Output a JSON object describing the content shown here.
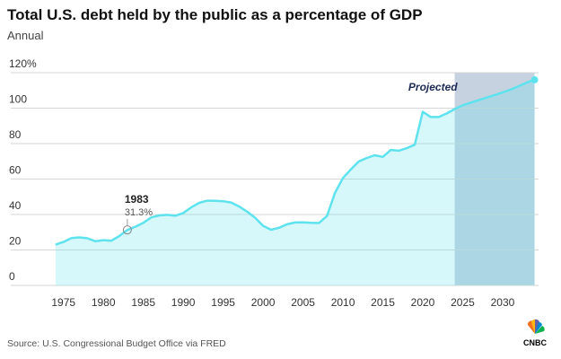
{
  "chart_data": {
    "type": "area",
    "title": "Total U.S. debt held by the public as a percentage of GDP",
    "subtitle": "Annual",
    "source": "Source: U.S. Congressional Budget Office via FRED",
    "logo": "CNBC",
    "x": [
      1974,
      1975,
      1976,
      1977,
      1978,
      1979,
      1980,
      1981,
      1982,
      1983,
      1984,
      1985,
      1986,
      1987,
      1988,
      1989,
      1990,
      1991,
      1992,
      1993,
      1994,
      1995,
      1996,
      1997,
      1998,
      1999,
      2000,
      2001,
      2002,
      2003,
      2004,
      2005,
      2006,
      2007,
      2008,
      2009,
      2010,
      2011,
      2012,
      2013,
      2014,
      2015,
      2016,
      2017,
      2018,
      2019,
      2020,
      2021,
      2022,
      2023,
      2024,
      2025,
      2026,
      2027,
      2028,
      2029,
      2030,
      2031,
      2032,
      2033,
      2034
    ],
    "values": [
      23,
      24.5,
      26.7,
      27.1,
      26.6,
      24.9,
      25.5,
      25.2,
      27.9,
      31.3,
      33.1,
      35.3,
      38.4,
      39.5,
      39.8,
      39.3,
      40.8,
      44.0,
      46.6,
      47.8,
      47.7,
      47.5,
      46.8,
      44.5,
      41.6,
      38.2,
      33.6,
      31.4,
      32.5,
      34.5,
      35.5,
      35.6,
      35.3,
      35.2,
      39.2,
      52.2,
      60.6,
      65.5,
      70.0,
      71.9,
      73.4,
      72.5,
      76.4,
      76.0,
      77.4,
      79.4,
      98,
      95,
      95,
      97,
      99.5,
      101.6,
      103.1,
      104.5,
      106.0,
      107.4,
      108.9,
      110.5,
      112.4,
      114.4,
      116.0
    ],
    "color": "#5ee3ee",
    "xlim": [
      1968.4,
      2034.5
    ],
    "xticks": [
      1975,
      1980,
      1985,
      1990,
      1995,
      2000,
      2005,
      2010,
      2015,
      2020,
      2025,
      2030
    ],
    "ylim": [
      0,
      120
    ],
    "yticks": [
      0,
      20,
      40,
      60,
      80,
      100,
      {
        "value": 120,
        "label": "120%"
      }
    ],
    "grid": true,
    "projection": {
      "start": 2024,
      "label": "Projected"
    },
    "annotations": [
      {
        "x": 1983,
        "y": 31.3,
        "label": "1983",
        "value_label": "31.3%"
      }
    ]
  }
}
